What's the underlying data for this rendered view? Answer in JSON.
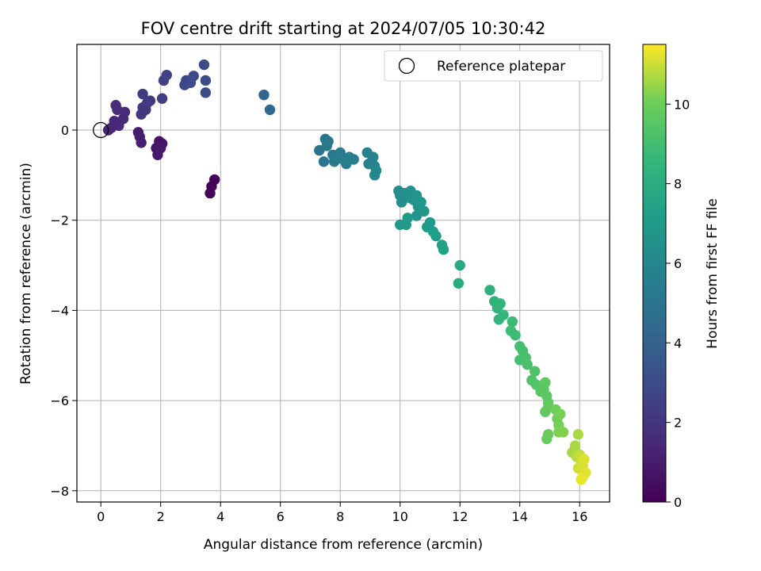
{
  "chart_data": {
    "type": "scatter",
    "title": "FOV centre drift starting at 2024/07/05 10:30:42",
    "xlabel": "Angular distance from reference (arcmin)",
    "ylabel": "Rotation from reference (arcmin)",
    "xlim": [
      -0.8,
      17.0
    ],
    "ylim": [
      -8.25,
      1.9
    ],
    "xticks": [
      0,
      2,
      4,
      6,
      8,
      10,
      12,
      14,
      16
    ],
    "yticks": [
      -8,
      -6,
      -4,
      -2,
      0
    ],
    "xtick_labels": [
      "0",
      "2",
      "4",
      "6",
      "8",
      "10",
      "12",
      "14",
      "16"
    ],
    "ytick_labels": [
      "−8",
      "−6",
      "−4",
      "−2",
      "0"
    ],
    "grid": true,
    "legend": {
      "placement": "top-right",
      "entries": [
        "Reference platepar"
      ]
    },
    "reference_point": {
      "x": 0,
      "y": 0,
      "label": "Reference platepar"
    },
    "colorbar": {
      "label": "Hours from first FF file",
      "min": 0,
      "max": 11.5,
      "ticks": [
        0,
        2,
        4,
        6,
        8,
        10
      ],
      "tick_labels": [
        "0",
        "2",
        "4",
        "6",
        "8",
        "10"
      ],
      "colormap": "viridis"
    },
    "points": [
      {
        "x": 3.8,
        "y": -1.1,
        "hours": 0.1
      },
      {
        "x": 3.7,
        "y": -1.25,
        "hours": 0.15
      },
      {
        "x": 3.65,
        "y": -1.4,
        "hours": 0.2
      },
      {
        "x": 2.05,
        "y": -0.3,
        "hours": 0.7
      },
      {
        "x": 1.95,
        "y": -0.25,
        "hours": 0.75
      },
      {
        "x": 1.85,
        "y": -0.4,
        "hours": 0.8
      },
      {
        "x": 1.9,
        "y": -0.55,
        "hours": 0.85
      },
      {
        "x": 2.0,
        "y": -0.4,
        "hours": 0.9
      },
      {
        "x": 1.25,
        "y": -0.05,
        "hours": 1.0
      },
      {
        "x": 1.3,
        "y": -0.15,
        "hours": 1.05
      },
      {
        "x": 1.35,
        "y": -0.28,
        "hours": 1.1
      },
      {
        "x": 0.25,
        "y": 0.0,
        "hours": 1.3
      },
      {
        "x": 0.35,
        "y": 0.05,
        "hours": 1.35
      },
      {
        "x": 0.45,
        "y": 0.2,
        "hours": 1.4
      },
      {
        "x": 0.6,
        "y": 0.1,
        "hours": 1.45
      },
      {
        "x": 0.75,
        "y": 0.25,
        "hours": 1.5
      },
      {
        "x": 0.8,
        "y": 0.4,
        "hours": 1.55
      },
      {
        "x": 0.5,
        "y": 0.55,
        "hours": 1.6
      },
      {
        "x": 0.55,
        "y": 0.45,
        "hours": 1.65
      },
      {
        "x": 1.35,
        "y": 0.35,
        "hours": 2.0
      },
      {
        "x": 1.4,
        "y": 0.5,
        "hours": 2.05
      },
      {
        "x": 1.5,
        "y": 0.45,
        "hours": 2.1
      },
      {
        "x": 1.55,
        "y": 0.6,
        "hours": 2.15
      },
      {
        "x": 1.65,
        "y": 0.65,
        "hours": 2.2
      },
      {
        "x": 1.4,
        "y": 0.8,
        "hours": 2.25
      },
      {
        "x": 2.05,
        "y": 0.7,
        "hours": 2.4
      },
      {
        "x": 2.1,
        "y": 1.1,
        "hours": 2.5
      },
      {
        "x": 2.2,
        "y": 1.22,
        "hours": 2.55
      },
      {
        "x": 2.8,
        "y": 1.0,
        "hours": 2.8
      },
      {
        "x": 2.85,
        "y": 1.1,
        "hours": 2.85
      },
      {
        "x": 3.0,
        "y": 1.05,
        "hours": 2.9
      },
      {
        "x": 3.1,
        "y": 1.2,
        "hours": 2.95
      },
      {
        "x": 3.45,
        "y": 1.45,
        "hours": 3.0
      },
      {
        "x": 3.5,
        "y": 1.1,
        "hours": 3.05
      },
      {
        "x": 3.5,
        "y": 0.83,
        "hours": 3.1
      },
      {
        "x": 5.45,
        "y": 0.78,
        "hours": 4.2
      },
      {
        "x": 5.65,
        "y": 0.45,
        "hours": 4.35
      },
      {
        "x": 7.3,
        "y": -0.45,
        "hours": 5.0
      },
      {
        "x": 7.45,
        "y": -0.7,
        "hours": 5.05
      },
      {
        "x": 7.5,
        "y": -0.2,
        "hours": 5.1
      },
      {
        "x": 7.55,
        "y": -0.35,
        "hours": 5.15
      },
      {
        "x": 7.6,
        "y": -0.25,
        "hours": 5.2
      },
      {
        "x": 7.75,
        "y": -0.55,
        "hours": 5.25
      },
      {
        "x": 7.8,
        "y": -0.7,
        "hours": 5.3
      },
      {
        "x": 7.9,
        "y": -0.6,
        "hours": 5.35
      },
      {
        "x": 8.0,
        "y": -0.5,
        "hours": 5.4
      },
      {
        "x": 8.1,
        "y": -0.65,
        "hours": 5.45
      },
      {
        "x": 8.2,
        "y": -0.75,
        "hours": 5.5
      },
      {
        "x": 8.3,
        "y": -0.6,
        "hours": 5.55
      },
      {
        "x": 8.45,
        "y": -0.65,
        "hours": 5.6
      },
      {
        "x": 8.9,
        "y": -0.5,
        "hours": 5.7
      },
      {
        "x": 8.95,
        "y": -0.75,
        "hours": 5.75
      },
      {
        "x": 9.05,
        "y": -0.7,
        "hours": 5.8
      },
      {
        "x": 9.1,
        "y": -0.6,
        "hours": 5.85
      },
      {
        "x": 9.15,
        "y": -0.8,
        "hours": 5.9
      },
      {
        "x": 9.2,
        "y": -0.9,
        "hours": 5.95
      },
      {
        "x": 9.15,
        "y": -1.0,
        "hours": 6.0
      },
      {
        "x": 9.95,
        "y": -1.35,
        "hours": 6.3
      },
      {
        "x": 10.0,
        "y": -1.45,
        "hours": 6.35
      },
      {
        "x": 10.05,
        "y": -1.6,
        "hours": 6.4
      },
      {
        "x": 10.15,
        "y": -1.4,
        "hours": 6.45
      },
      {
        "x": 10.3,
        "y": -1.5,
        "hours": 6.5
      },
      {
        "x": 10.35,
        "y": -1.35,
        "hours": 6.55
      },
      {
        "x": 10.45,
        "y": -1.55,
        "hours": 6.6
      },
      {
        "x": 10.55,
        "y": -1.45,
        "hours": 6.65
      },
      {
        "x": 10.6,
        "y": -1.7,
        "hours": 6.7
      },
      {
        "x": 10.55,
        "y": -1.9,
        "hours": 6.75
      },
      {
        "x": 10.7,
        "y": -1.6,
        "hours": 6.8
      },
      {
        "x": 10.8,
        "y": -1.8,
        "hours": 6.85
      },
      {
        "x": 10.0,
        "y": -2.1,
        "hours": 6.9
      },
      {
        "x": 10.2,
        "y": -2.1,
        "hours": 6.95
      },
      {
        "x": 10.25,
        "y": -1.95,
        "hours": 7.0
      },
      {
        "x": 10.9,
        "y": -2.15,
        "hours": 7.1
      },
      {
        "x": 11.0,
        "y": -2.05,
        "hours": 7.15
      },
      {
        "x": 11.1,
        "y": -2.25,
        "hours": 7.2
      },
      {
        "x": 11.2,
        "y": -2.35,
        "hours": 7.25
      },
      {
        "x": 11.4,
        "y": -2.55,
        "hours": 7.3
      },
      {
        "x": 11.45,
        "y": -2.65,
        "hours": 7.35
      },
      {
        "x": 12.0,
        "y": -3.0,
        "hours": 7.8
      },
      {
        "x": 11.95,
        "y": -3.4,
        "hours": 7.9
      },
      {
        "x": 13.0,
        "y": -3.55,
        "hours": 8.3
      },
      {
        "x": 13.15,
        "y": -3.8,
        "hours": 8.35
      },
      {
        "x": 13.25,
        "y": -3.95,
        "hours": 8.4
      },
      {
        "x": 13.35,
        "y": -3.85,
        "hours": 8.45
      },
      {
        "x": 13.3,
        "y": -4.2,
        "hours": 8.5
      },
      {
        "x": 13.45,
        "y": -4.1,
        "hours": 8.55
      },
      {
        "x": 13.75,
        "y": -4.25,
        "hours": 8.8
      },
      {
        "x": 13.7,
        "y": -4.45,
        "hours": 8.85
      },
      {
        "x": 13.85,
        "y": -4.55,
        "hours": 8.9
      },
      {
        "x": 14.0,
        "y": -4.8,
        "hours": 9.0
      },
      {
        "x": 14.1,
        "y": -4.9,
        "hours": 9.05
      },
      {
        "x": 14.0,
        "y": -5.1,
        "hours": 9.1
      },
      {
        "x": 14.2,
        "y": -5.05,
        "hours": 9.15
      },
      {
        "x": 14.25,
        "y": -5.2,
        "hours": 9.2
      },
      {
        "x": 14.5,
        "y": -5.35,
        "hours": 9.3
      },
      {
        "x": 14.4,
        "y": -5.55,
        "hours": 9.35
      },
      {
        "x": 14.55,
        "y": -5.65,
        "hours": 9.4
      },
      {
        "x": 14.7,
        "y": -5.8,
        "hours": 9.5
      },
      {
        "x": 14.8,
        "y": -5.75,
        "hours": 9.55
      },
      {
        "x": 14.85,
        "y": -5.6,
        "hours": 9.6
      },
      {
        "x": 14.9,
        "y": -5.9,
        "hours": 9.65
      },
      {
        "x": 14.95,
        "y": -6.05,
        "hours": 9.7
      },
      {
        "x": 14.85,
        "y": -6.25,
        "hours": 9.75
      },
      {
        "x": 14.95,
        "y": -6.15,
        "hours": 9.8
      },
      {
        "x": 14.9,
        "y": -6.85,
        "hours": 9.85
      },
      {
        "x": 14.95,
        "y": -6.75,
        "hours": 9.9
      },
      {
        "x": 15.2,
        "y": -6.2,
        "hours": 10.0
      },
      {
        "x": 15.25,
        "y": -6.4,
        "hours": 10.05
      },
      {
        "x": 15.3,
        "y": -6.55,
        "hours": 10.1
      },
      {
        "x": 15.35,
        "y": -6.3,
        "hours": 10.15
      },
      {
        "x": 15.3,
        "y": -6.7,
        "hours": 10.2
      },
      {
        "x": 15.45,
        "y": -6.7,
        "hours": 10.25
      },
      {
        "x": 15.75,
        "y": -7.15,
        "hours": 10.6
      },
      {
        "x": 15.85,
        "y": -7.0,
        "hours": 10.65
      },
      {
        "x": 15.95,
        "y": -6.75,
        "hours": 10.7
      },
      {
        "x": 15.9,
        "y": -7.25,
        "hours": 10.8
      },
      {
        "x": 16.0,
        "y": -7.2,
        "hours": 10.9
      },
      {
        "x": 16.05,
        "y": -7.35,
        "hours": 11.0
      },
      {
        "x": 15.95,
        "y": -7.5,
        "hours": 11.05
      },
      {
        "x": 16.1,
        "y": -7.45,
        "hours": 11.1
      },
      {
        "x": 16.15,
        "y": -7.3,
        "hours": 11.15
      },
      {
        "x": 16.2,
        "y": -7.6,
        "hours": 11.2
      },
      {
        "x": 16.1,
        "y": -7.7,
        "hours": 11.25
      },
      {
        "x": 16.05,
        "y": -7.75,
        "hours": 11.3
      }
    ]
  }
}
